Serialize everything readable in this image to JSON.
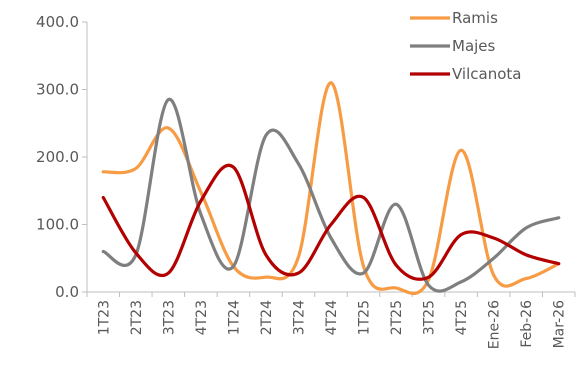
{
  "chart_data": {
    "type": "line",
    "categories": [
      "1T23",
      "2T23",
      "3T23",
      "4T23",
      "1T24",
      "2T24",
      "3T24",
      "4T24",
      "1T25",
      "2T25",
      "3T25",
      "4T25",
      "Ene-26",
      "Feb-26",
      "Mar-26"
    ],
    "ylim": [
      0,
      400
    ],
    "yticks": [
      0,
      100,
      200,
      300,
      400
    ],
    "ytick_labels": [
      "0.0",
      "100.0",
      "200.0",
      "300.0",
      "400.0"
    ],
    "grid": false,
    "legend_position": "top-right",
    "series": [
      {
        "name": "Ramis",
        "color": "#F79B44",
        "values": [
          178,
          183,
          243,
          148,
          38,
          22,
          52,
          310,
          38,
          6,
          18,
          210,
          25,
          20,
          42
        ]
      },
      {
        "name": "Majes",
        "color": "#7F7F7F",
        "values": [
          60,
          55,
          285,
          115,
          38,
          232,
          190,
          80,
          28,
          130,
          10,
          15,
          50,
          95,
          110
        ]
      },
      {
        "name": "Vilcanota",
        "color": "#B30000",
        "values": [
          140,
          58,
          28,
          135,
          185,
          55,
          28,
          100,
          140,
          40,
          22,
          85,
          80,
          55,
          42
        ]
      }
    ]
  }
}
